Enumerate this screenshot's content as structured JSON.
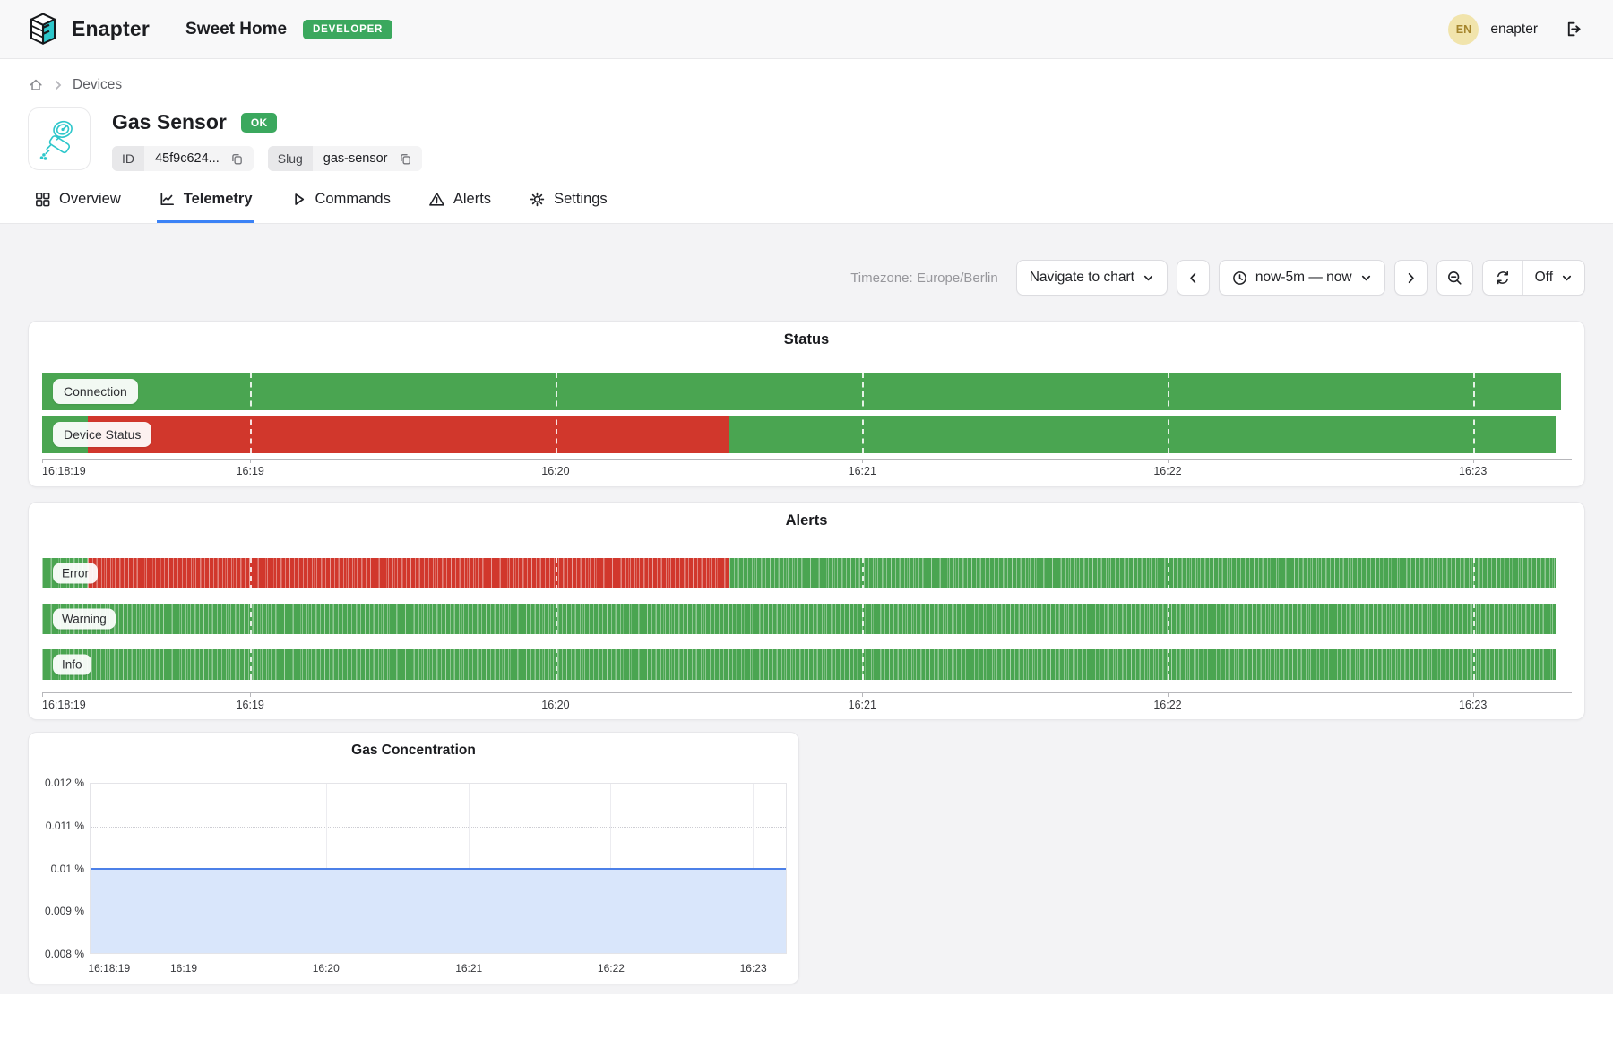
{
  "header": {
    "brand": "Enapter",
    "site_name": "Sweet Home",
    "role_badge": "DEVELOPER",
    "user_initials": "EN",
    "user_name": "enapter"
  },
  "breadcrumb": {
    "devices": "Devices"
  },
  "device": {
    "name": "Gas Sensor",
    "status_badge": "OK",
    "id_label": "ID",
    "id_value": "45f9c624...",
    "slug_label": "Slug",
    "slug_value": "gas-sensor"
  },
  "tabs": [
    {
      "label": "Overview"
    },
    {
      "label": "Telemetry"
    },
    {
      "label": "Commands"
    },
    {
      "label": "Alerts"
    },
    {
      "label": "Settings"
    }
  ],
  "toolbar": {
    "timezone": "Timezone: Europe/Berlin",
    "navigate_label": "Navigate to chart",
    "range_label": "now-5m — now",
    "refresh_off_label": "Off"
  },
  "charts": {
    "status": {
      "title": "Status",
      "gridlines": true,
      "ticks": [
        {
          "label": "16:18:19",
          "pos": 0,
          "align": "left"
        },
        {
          "label": "16:19",
          "pos": 13.7
        },
        {
          "label": "16:20",
          "pos": 33.8
        },
        {
          "label": "16:21",
          "pos": 54.0
        },
        {
          "label": "16:22",
          "pos": 74.1
        },
        {
          "label": "16:23",
          "pos": 94.2
        }
      ],
      "rows": [
        {
          "label": "Connection",
          "width_pct": 100,
          "segments": [
            {
              "color": "green",
              "from": 0,
              "to": 100
            }
          ]
        },
        {
          "label": "Device Status",
          "width_pct": 99.65,
          "segments": [
            {
              "color": "green",
              "from": 0,
              "to": 3.0
            },
            {
              "color": "red",
              "from": 3.0,
              "to": 45.4
            },
            {
              "color": "green",
              "from": 45.4,
              "to": 100
            }
          ]
        }
      ]
    },
    "alerts": {
      "title": "Alerts",
      "gridlines": true,
      "striped": true,
      "ticks": [
        {
          "label": "16:18:19",
          "pos": 0,
          "align": "left"
        },
        {
          "label": "16:19",
          "pos": 13.7
        },
        {
          "label": "16:20",
          "pos": 33.8
        },
        {
          "label": "16:21",
          "pos": 54.0
        },
        {
          "label": "16:22",
          "pos": 74.1
        },
        {
          "label": "16:23",
          "pos": 94.2
        }
      ],
      "rows": [
        {
          "label": "Error",
          "width_pct": 99.65,
          "segments": [
            {
              "color": "green",
              "from": 0,
              "to": 3.0
            },
            {
              "color": "red",
              "from": 3.0,
              "to": 45.4
            },
            {
              "color": "green",
              "from": 45.4,
              "to": 100
            }
          ]
        },
        {
          "label": "Warning",
          "width_pct": 99.65,
          "segments": [
            {
              "color": "green",
              "from": 0,
              "to": 100
            }
          ]
        },
        {
          "label": "Info",
          "width_pct": 99.65,
          "segments": [
            {
              "color": "green",
              "from": 0,
              "to": 100
            }
          ]
        }
      ]
    },
    "gas": {
      "title": "Gas Concentration",
      "y_ticks": [
        {
          "label": "0.012 %",
          "pos": 0
        },
        {
          "label": "0.011 %",
          "pos": 25
        },
        {
          "label": "0.01 %",
          "pos": 50
        },
        {
          "label": "0.009 %",
          "pos": 75
        },
        {
          "label": "0.008 %",
          "pos": 100
        }
      ],
      "x_ticks": [
        {
          "label": "16:18:19",
          "pos": 2.8,
          "grid": false
        },
        {
          "label": "16:19",
          "pos": 13.5,
          "grid": true
        },
        {
          "label": "16:20",
          "pos": 33.9,
          "grid": true
        },
        {
          "label": "16:21",
          "pos": 54.4,
          "grid": true
        },
        {
          "label": "16:22",
          "pos": 74.8,
          "grid": true
        },
        {
          "label": "16:23",
          "pos": 95.2,
          "grid": true
        }
      ],
      "value_pos_pct": 50,
      "line_color": "#4c80e8",
      "fill_color": "#d9e6fb"
    }
  },
  "chart_data": [
    {
      "type": "state-timeline",
      "title": "Status",
      "x_range": [
        "16:18:19",
        "16:23:19"
      ],
      "x_ticks": [
        "16:18:19",
        "16:19",
        "16:20",
        "16:21",
        "16:22",
        "16:23"
      ],
      "legend_position": "on-bar-left",
      "series": [
        {
          "name": "Connection",
          "states": [
            {
              "state": "ok",
              "from": "16:18:19",
              "to": "16:23:19"
            }
          ]
        },
        {
          "name": "Device Status",
          "states": [
            {
              "state": "ok",
              "from": "16:18:19",
              "to": "16:18:28"
            },
            {
              "state": "error",
              "from": "16:18:28",
              "to": "16:20:35"
            },
            {
              "state": "ok",
              "from": "16:20:35",
              "to": "16:23:18"
            }
          ]
        }
      ],
      "colors": {
        "ok": "#4aa551",
        "error": "#d1372c"
      }
    },
    {
      "type": "state-timeline",
      "title": "Alerts",
      "x_range": [
        "16:18:19",
        "16:23:19"
      ],
      "x_ticks": [
        "16:18:19",
        "16:19",
        "16:20",
        "16:21",
        "16:22",
        "16:23"
      ],
      "series": [
        {
          "name": "Error",
          "states": [
            {
              "state": "ok",
              "from": "16:18:19",
              "to": "16:18:28"
            },
            {
              "state": "alerting",
              "from": "16:18:28",
              "to": "16:20:35"
            },
            {
              "state": "ok",
              "from": "16:20:35",
              "to": "16:23:18"
            }
          ]
        },
        {
          "name": "Warning",
          "states": [
            {
              "state": "ok",
              "from": "16:18:19",
              "to": "16:23:18"
            }
          ]
        },
        {
          "name": "Info",
          "states": [
            {
              "state": "ok",
              "from": "16:18:19",
              "to": "16:23:18"
            }
          ]
        }
      ],
      "colors": {
        "ok": "#4aa551",
        "alerting": "#d1372c"
      }
    },
    {
      "type": "area",
      "title": "Gas Concentration",
      "ylabel": "%",
      "ylim": [
        0.008,
        0.012
      ],
      "y_ticks": [
        "0.012 %",
        "0.011 %",
        "0.01 %",
        "0.009 %",
        "0.008 %"
      ],
      "x_ticks": [
        "16:18:19",
        "16:19",
        "16:20",
        "16:21",
        "16:22",
        "16:23"
      ],
      "series": [
        {
          "name": "gas concentration",
          "value": 0.01,
          "note": "constant at 0.01 % across the whole now-5m window"
        }
      ]
    }
  ]
}
